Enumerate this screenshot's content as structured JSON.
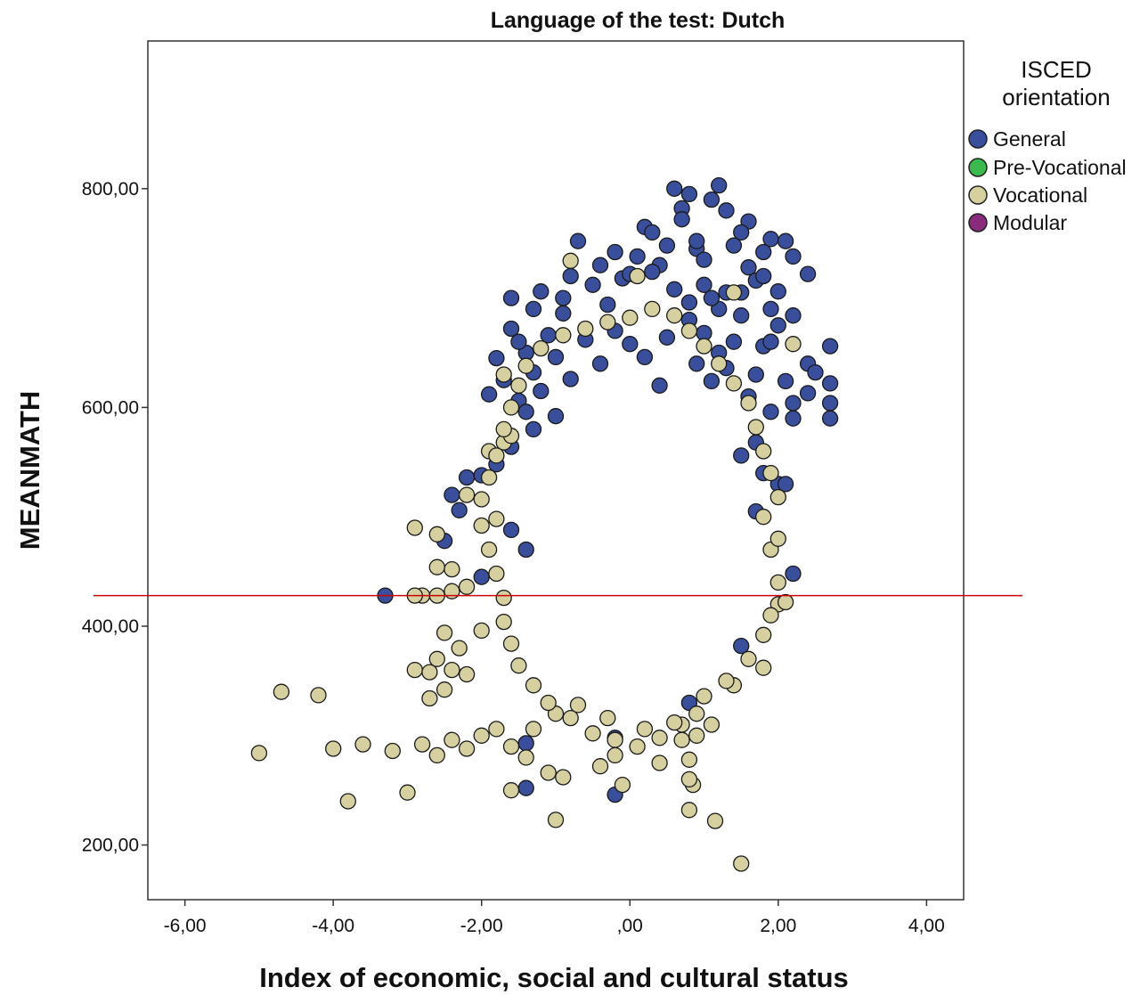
{
  "chart_data": {
    "type": "scatter",
    "title": "Language of the test: Dutch",
    "xlabel": "Index of economic, social and cultural status",
    "ylabel": "MEANMATH",
    "xlim": [
      -6.5,
      4.5
    ],
    "ylim": [
      150,
      935
    ],
    "xticks": [
      -6,
      -4,
      -2,
      0,
      2,
      4
    ],
    "xtick_labels": [
      "-6,00",
      "-4,00",
      "-2,00",
      ",00",
      "2,00",
      "4,00"
    ],
    "yticks": [
      200,
      400,
      600,
      800
    ],
    "ytick_labels": [
      "200,00",
      "400,00",
      "600,00",
      "800,00"
    ],
    "grid": false,
    "legend": {
      "title_lines": [
        "ISCED",
        "orientation"
      ],
      "placement": "right",
      "items": [
        {
          "name": "General",
          "color": "#3a4f9c"
        },
        {
          "name": "Pre-Vocational",
          "color": "#3cb94c"
        },
        {
          "name": "Vocational",
          "color": "#d6d0a0"
        },
        {
          "name": "Modular",
          "color": "#8a2a7d"
        }
      ]
    },
    "reference_line": {
      "y": 428,
      "color": "#cc0000"
    },
    "series": [
      {
        "name": "General",
        "color": "#3a4f9c",
        "points": [
          [
            0.6,
            800
          ],
          [
            1.2,
            803
          ],
          [
            1.1,
            790
          ],
          [
            0.8,
            795
          ],
          [
            1.3,
            780
          ],
          [
            1.6,
            770
          ],
          [
            1.5,
            760
          ],
          [
            1.9,
            754
          ],
          [
            2.1,
            752
          ],
          [
            0.2,
            765
          ],
          [
            0.7,
            782
          ],
          [
            -0.7,
            752
          ],
          [
            0.1,
            738
          ],
          [
            -0.2,
            742
          ],
          [
            0.4,
            730
          ],
          [
            0.9,
            745
          ],
          [
            1.4,
            748
          ],
          [
            1.8,
            742
          ],
          [
            2.2,
            738
          ],
          [
            2.4,
            722
          ],
          [
            -0.8,
            720
          ],
          [
            -1.2,
            706
          ],
          [
            -0.5,
            712
          ],
          [
            -0.1,
            718
          ],
          [
            0.3,
            724
          ],
          [
            0.6,
            708
          ],
          [
            1.0,
            712
          ],
          [
            1.7,
            716
          ],
          [
            2.0,
            706
          ],
          [
            -1.6,
            700
          ],
          [
            -1.3,
            690
          ],
          [
            -0.9,
            686
          ],
          [
            -0.3,
            694
          ],
          [
            0.8,
            696
          ],
          [
            1.2,
            690
          ],
          [
            1.5,
            684
          ],
          [
            1.9,
            690
          ],
          [
            2.2,
            684
          ],
          [
            -1.6,
            672
          ],
          [
            -1.1,
            666
          ],
          [
            -0.6,
            662
          ],
          [
            0.0,
            658
          ],
          [
            0.5,
            664
          ],
          [
            1.0,
            668
          ],
          [
            1.4,
            660
          ],
          [
            1.8,
            656
          ],
          [
            2.7,
            656
          ],
          [
            -1.4,
            650
          ],
          [
            -1.0,
            646
          ],
          [
            -0.4,
            640
          ],
          [
            0.2,
            646
          ],
          [
            0.9,
            640
          ],
          [
            1.3,
            636
          ],
          [
            1.7,
            630
          ],
          [
            2.4,
            640
          ],
          [
            2.5,
            632
          ],
          [
            -1.7,
            625
          ],
          [
            -1.3,
            632
          ],
          [
            -0.8,
            626
          ],
          [
            0.4,
            620
          ],
          [
            1.1,
            624
          ],
          [
            2.1,
            624
          ],
          [
            2.7,
            622
          ],
          [
            -1.9,
            612
          ],
          [
            -1.5,
            606
          ],
          [
            -1.2,
            615
          ],
          [
            1.6,
            610
          ],
          [
            2.2,
            604
          ],
          [
            2.4,
            613
          ],
          [
            -1.4,
            596
          ],
          [
            -1.0,
            592
          ],
          [
            1.9,
            596
          ],
          [
            2.7,
            604
          ],
          [
            2.7,
            590
          ],
          [
            2.2,
            590
          ],
          [
            -1.3,
            580
          ],
          [
            1.7,
            568
          ],
          [
            -1.6,
            564
          ],
          [
            1.5,
            556
          ],
          [
            -1.8,
            548
          ],
          [
            1.8,
            540
          ],
          [
            -2.2,
            536
          ],
          [
            -2.0,
            538
          ],
          [
            2.0,
            530
          ],
          [
            2.1,
            530
          ],
          [
            -2.4,
            520
          ],
          [
            -2.3,
            506
          ],
          [
            1.7,
            505
          ],
          [
            -1.6,
            488
          ],
          [
            -2.5,
            478
          ],
          [
            -1.4,
            470
          ],
          [
            -2.0,
            445
          ],
          [
            2.2,
            448
          ],
          [
            -3.3,
            428
          ],
          [
            1.5,
            382
          ],
          [
            0.8,
            330
          ],
          [
            -1.4,
            293
          ],
          [
            -0.2,
            298
          ],
          [
            -1.4,
            252
          ],
          [
            -0.2,
            246
          ],
          [
            1.1,
            700
          ],
          [
            1.3,
            705
          ],
          [
            0.5,
            748
          ],
          [
            0.9,
            752
          ],
          [
            -0.4,
            730
          ],
          [
            0.0,
            722
          ],
          [
            1.6,
            728
          ],
          [
            1.0,
            735
          ],
          [
            0.3,
            760
          ],
          [
            0.7,
            772
          ],
          [
            -1.5,
            660
          ],
          [
            -1.8,
            645
          ],
          [
            1.2,
            650
          ],
          [
            1.9,
            660
          ],
          [
            2.0,
            675
          ],
          [
            0.8,
            680
          ],
          [
            -0.2,
            670
          ],
          [
            -0.9,
            700
          ],
          [
            1.5,
            705
          ],
          [
            1.8,
            720
          ]
        ]
      },
      {
        "name": "Pre-Vocational",
        "color": "#3cb94c",
        "points": []
      },
      {
        "name": "Vocational",
        "color": "#d6d0a0",
        "points": [
          [
            1.5,
            183
          ],
          [
            1.15,
            222
          ],
          [
            -1.0,
            223
          ],
          [
            0.8,
            232
          ],
          [
            -3.8,
            240
          ],
          [
            -3.0,
            248
          ],
          [
            -1.6,
            250
          ],
          [
            0.85,
            255
          ],
          [
            0.8,
            260
          ],
          [
            -0.1,
            255
          ],
          [
            -5.0,
            284
          ],
          [
            -4.0,
            288
          ],
          [
            -3.6,
            292
          ],
          [
            -3.2,
            286
          ],
          [
            -2.8,
            292
          ],
          [
            -2.6,
            282
          ],
          [
            -2.4,
            296
          ],
          [
            -2.2,
            288
          ],
          [
            -2.0,
            300
          ],
          [
            -1.8,
            306
          ],
          [
            -4.7,
            340
          ],
          [
            -4.2,
            337
          ],
          [
            -2.7,
            334
          ],
          [
            -2.5,
            342
          ],
          [
            -2.9,
            360
          ],
          [
            -2.7,
            358
          ],
          [
            -2.4,
            360
          ],
          [
            -2.2,
            356
          ],
          [
            -2.6,
            370
          ],
          [
            -2.3,
            380
          ],
          [
            -2.5,
            394
          ],
          [
            -2.0,
            396
          ],
          [
            -2.8,
            428
          ],
          [
            -2.9,
            428
          ],
          [
            -2.6,
            428
          ],
          [
            -2.4,
            432
          ],
          [
            -2.2,
            436
          ],
          [
            -2.6,
            454
          ],
          [
            -2.4,
            452
          ],
          [
            -2.6,
            484
          ],
          [
            -2.9,
            490
          ],
          [
            -2.2,
            520
          ],
          [
            -1.8,
            498
          ],
          [
            -1.9,
            560
          ],
          [
            -1.7,
            568
          ],
          [
            -1.6,
            574
          ],
          [
            -1.7,
            630
          ],
          [
            -0.8,
            734
          ],
          [
            0.1,
            720
          ],
          [
            1.4,
            705
          ],
          [
            2.2,
            658
          ],
          [
            2.0,
            420
          ],
          [
            2.1,
            422
          ],
          [
            1.8,
            362
          ],
          [
            1.4,
            346
          ],
          [
            1.1,
            310
          ],
          [
            0.9,
            320
          ],
          [
            0.7,
            310
          ],
          [
            0.4,
            275
          ],
          [
            0.8,
            278
          ],
          [
            -0.2,
            282
          ],
          [
            -0.4,
            272
          ],
          [
            -0.9,
            262
          ],
          [
            -1.1,
            266
          ],
          [
            -1.4,
            280
          ],
          [
            -1.6,
            290
          ],
          [
            -1.3,
            306
          ],
          [
            -1.0,
            320
          ],
          [
            -0.7,
            328
          ],
          [
            -0.3,
            316
          ],
          [
            0.2,
            306
          ],
          [
            0.6,
            312
          ],
          [
            1.0,
            336
          ],
          [
            1.3,
            350
          ],
          [
            1.6,
            370
          ],
          [
            1.8,
            392
          ],
          [
            1.9,
            410
          ],
          [
            2.0,
            440
          ],
          [
            1.9,
            470
          ],
          [
            2.0,
            480
          ],
          [
            1.8,
            500
          ],
          [
            2.0,
            518
          ],
          [
            1.9,
            540
          ],
          [
            1.8,
            560
          ],
          [
            1.7,
            582
          ],
          [
            1.6,
            604
          ],
          [
            1.4,
            622
          ],
          [
            1.2,
            640
          ],
          [
            1.0,
            656
          ],
          [
            0.8,
            670
          ],
          [
            0.6,
            684
          ],
          [
            0.3,
            690
          ],
          [
            0.0,
            682
          ],
          [
            -0.3,
            678
          ],
          [
            -0.6,
            672
          ],
          [
            -0.9,
            666
          ],
          [
            -1.2,
            654
          ],
          [
            -1.4,
            638
          ],
          [
            -1.5,
            620
          ],
          [
            -1.6,
            600
          ],
          [
            -1.7,
            580
          ],
          [
            -1.8,
            556
          ],
          [
            -1.9,
            536
          ],
          [
            -2.0,
            516
          ],
          [
            -2.0,
            492
          ],
          [
            -1.9,
            470
          ],
          [
            -1.8,
            448
          ],
          [
            -1.7,
            426
          ],
          [
            -1.7,
            404
          ],
          [
            -1.6,
            384
          ],
          [
            -1.5,
            364
          ],
          [
            -1.3,
            346
          ],
          [
            -1.1,
            330
          ],
          [
            -0.8,
            316
          ],
          [
            -0.5,
            302
          ],
          [
            -0.2,
            296
          ],
          [
            0.1,
            290
          ],
          [
            0.4,
            298
          ],
          [
            0.7,
            296
          ],
          [
            0.9,
            300
          ]
        ]
      },
      {
        "name": "Modular",
        "color": "#8a2a7d",
        "points": []
      }
    ]
  }
}
